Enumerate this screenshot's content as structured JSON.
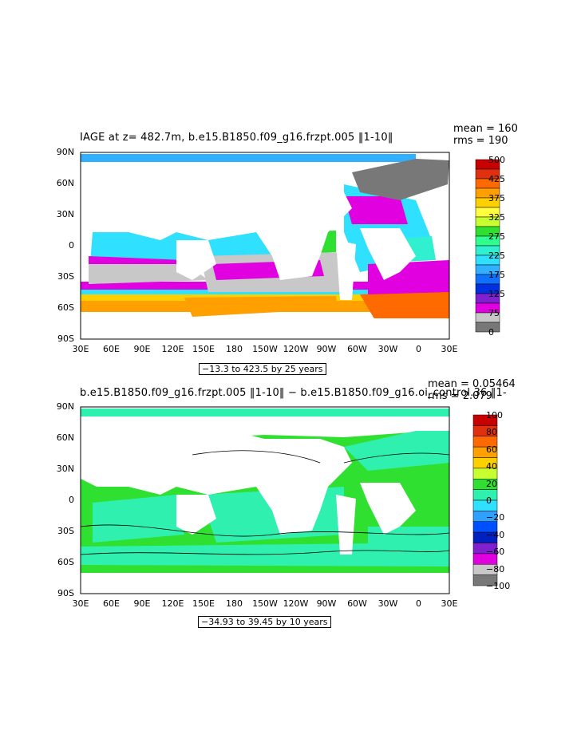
{
  "panel1": {
    "title": "IAGE at z= 482.7m, b.e15.B1850.f09_g16.frzpt.005 ‖1-10‖",
    "mean": "mean = 160",
    "rms": "rms = 190",
    "range": "−13.3 to 423.5 by 25 years",
    "colorbar_labels": [
      "500",
      "425",
      "375",
      "325",
      "275",
      "225",
      "175",
      "125",
      "75",
      "0"
    ],
    "colorbar_colors": [
      "#c80000",
      "#e03010",
      "#ff6a00",
      "#ffa000",
      "#ffd000",
      "#ffff40",
      "#c8ff30",
      "#30e030",
      "#30ff90",
      "#30f0d0",
      "#30e0ff",
      "#30b0ff",
      "#1070ff",
      "#0030e0",
      "#8020d0",
      "#e000e0",
      "#c8c8c8",
      "#787878"
    ]
  },
  "panel2": {
    "title": "b.e15.B1850.f09_g16.frzpt.005 ‖1-10‖ − b.e15.B1850.f09_g16.oi_control.36 ‖1-",
    "mean": "mean = 0.05464",
    "rms": "rms = 2.079",
    "range": "−34.93 to 39.45 by 10 years",
    "colorbar_labels": [
      "100",
      "80",
      "60",
      "40",
      "20",
      "0",
      "−20",
      "−40",
      "−60",
      "−80",
      "−100"
    ],
    "colorbar_colors": [
      "#c80000",
      "#e03010",
      "#ff6a00",
      "#ffa000",
      "#ffd000",
      "#c8ff30",
      "#30e030",
      "#30f0b0",
      "#30e0ff",
      "#30a0ff",
      "#0050ff",
      "#0020c0",
      "#8020d0",
      "#e000e0",
      "#c8c8c8",
      "#787878"
    ]
  },
  "axes": {
    "lat_labels": [
      "90N",
      "60N",
      "30N",
      "0",
      "30S",
      "60S",
      "90S"
    ],
    "lon_labels": [
      "30E",
      "60E",
      "90E",
      "120E",
      "150E",
      "180",
      "150W",
      "120W",
      "90W",
      "60W",
      "30W",
      "0",
      "30E"
    ]
  }
}
